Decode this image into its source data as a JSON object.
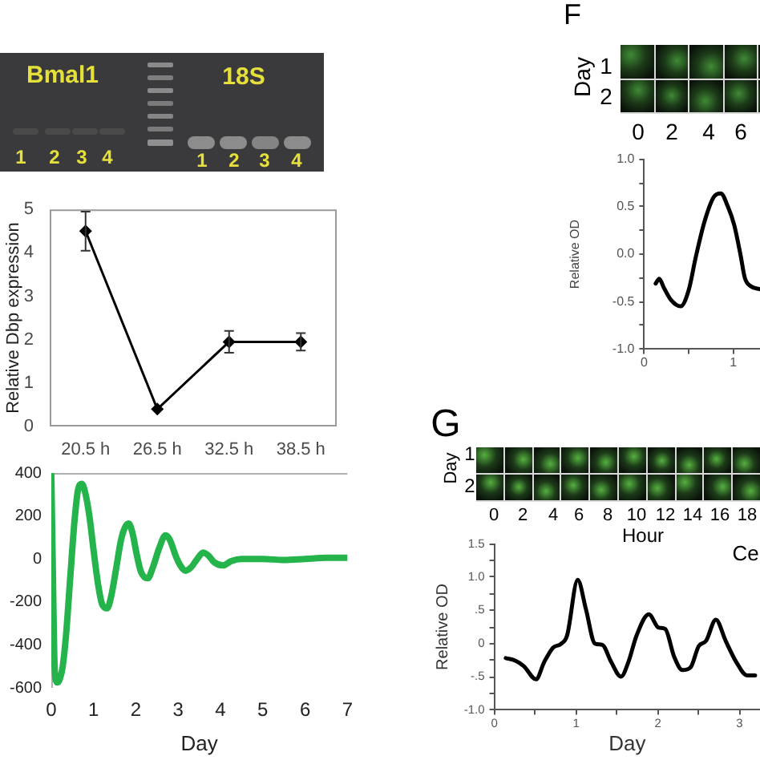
{
  "chart_data": [
    {
      "type": "line",
      "categories": [
        "20.5 h",
        "26.5 h",
        "32.5 h",
        "38.5 h"
      ],
      "values": [
        4.5,
        0.4,
        1.95,
        1.95
      ],
      "errors": [
        0.45,
        null,
        0.25,
        0.2
      ],
      "color": "#000000",
      "marker": "diamond",
      "ylabel": "Relative Dbp expression",
      "ylim": [
        0,
        5
      ],
      "yticks": [
        0,
        1,
        2,
        3,
        4,
        5
      ],
      "annotations": [
        "Bmal1",
        "18S",
        "1",
        "2",
        "3",
        "4",
        "1",
        "2",
        "3",
        "4"
      ]
    },
    {
      "type": "line",
      "x": [
        0,
        0.04,
        0.07,
        0.1,
        0.15,
        0.2,
        0.27,
        0.35,
        0.45,
        0.55,
        0.63,
        0.72,
        0.8,
        0.9,
        1.0,
        1.1,
        1.2,
        1.32,
        1.42,
        1.52,
        1.65,
        1.75,
        1.83,
        1.92,
        2.02,
        2.12,
        2.28,
        2.4,
        2.55,
        2.7,
        2.8,
        2.95,
        3.05,
        3.17,
        3.3,
        3.45,
        3.59,
        3.72,
        3.85,
        4.06,
        4.25,
        4.5,
        5,
        5.5,
        6,
        6.5,
        7
      ],
      "values": [
        390,
        -100,
        -450,
        -560,
        -575,
        -560,
        -500,
        -350,
        -80,
        180,
        320,
        350,
        310,
        200,
        40,
        -110,
        -210,
        -230,
        -170,
        -60,
        90,
        150,
        165,
        120,
        20,
        -60,
        -90,
        -40,
        50,
        110,
        90,
        10,
        -30,
        -55,
        -40,
        0,
        30,
        15,
        -15,
        -30,
        -10,
        0,
        0,
        -5,
        0,
        5,
        5
      ],
      "color": "#25b34b",
      "marker": "none",
      "xlabel": "Day",
      "xlim": [
        0,
        7
      ],
      "xticks": [
        0,
        1,
        2,
        3,
        4,
        5,
        6,
        7
      ],
      "ylim": [
        -600,
        400
      ],
      "yticks": [
        -600,
        -400,
        -200,
        0,
        200,
        400
      ]
    },
    {
      "type": "line",
      "title": "F",
      "annotations": [
        "Day",
        "1",
        "2",
        "0",
        "2",
        "4",
        "6"
      ],
      "x": [
        0.13,
        0.17,
        0.22,
        0.3,
        0.41,
        0.5,
        0.58,
        0.68,
        0.78,
        0.86,
        0.94,
        1.01,
        1.08,
        1.13,
        1.2,
        1.3
      ],
      "values": [
        -0.31,
        -0.26,
        -0.35,
        -0.48,
        -0.55,
        -0.38,
        -0.03,
        0.35,
        0.6,
        0.64,
        0.5,
        0.31,
        0.0,
        -0.25,
        -0.34,
        -0.37
      ],
      "color": "#000000",
      "marker": "none",
      "ylabel": "Relative OD",
      "xlim": [
        0,
        1.3
      ],
      "xticks": [
        0,
        {
          "value": 0.5,
          "label": null
        },
        1
      ],
      "ylim": [
        -1,
        1
      ],
      "yticks": [
        {
          "value": -1,
          "label": "-1.0"
        },
        {
          "value": -0.75,
          "label": null
        },
        {
          "value": -0.5,
          "label": "-0.5"
        },
        {
          "value": -0.25,
          "label": null
        },
        {
          "value": 0,
          "label": "0.0"
        },
        {
          "value": 0.25,
          "label": null
        },
        {
          "value": 0.5,
          "label": "0.5"
        },
        {
          "value": 0.75,
          "label": null
        },
        {
          "value": 1,
          "label": "1.0"
        }
      ]
    },
    {
      "type": "line",
      "title": "G",
      "annotations": [
        "Day",
        "1",
        "2",
        "0",
        "2",
        "4",
        "6",
        "8",
        "10",
        "12",
        "14",
        "16",
        "18",
        "Hour",
        "Ce"
      ],
      "x": [
        0.14,
        0.26,
        0.36,
        0.51,
        0.61,
        0.72,
        0.81,
        0.89,
        1.02,
        1.12,
        1.23,
        1.32,
        1.43,
        1.55,
        1.64,
        1.74,
        1.89,
        2.01,
        2.09,
        2.2,
        2.3,
        2.4,
        2.5,
        2.59,
        2.71,
        2.83,
        2.96,
        3.09,
        3.19
      ],
      "values": [
        -0.22,
        -0.26,
        -0.34,
        -0.54,
        -0.28,
        -0.06,
        -0.01,
        0.12,
        0.96,
        0.52,
        0.0,
        -0.02,
        -0.28,
        -0.5,
        -0.28,
        0.12,
        0.44,
        0.24,
        0.22,
        -0.2,
        -0.4,
        -0.36,
        -0.04,
        0.04,
        0.36,
        0.04,
        -0.28,
        -0.48,
        -0.48
      ],
      "color": "#000000",
      "marker": "none",
      "ylabel": "Relative OD",
      "xlabel": "Day",
      "xlim": [
        0,
        3.25
      ],
      "xticks": [
        0,
        {
          "value": 0.5,
          "label": null
        },
        1,
        {
          "value": 1.5,
          "label": null
        },
        2,
        {
          "value": 2.5,
          "label": null
        },
        3
      ],
      "ylim": [
        -1,
        1.5
      ],
      "yticks": [
        {
          "value": -1,
          "label": "-1.0"
        },
        {
          "value": -0.75,
          "label": null
        },
        {
          "value": -0.5,
          "label": "-.5"
        },
        {
          "value": -0.25,
          "label": null
        },
        0,
        {
          "value": 0.25,
          "label": null
        },
        {
          "value": 0.5,
          "label": ".5"
        },
        {
          "value": 0.75,
          "label": null
        },
        {
          "value": 1,
          "label": "1.0"
        },
        {
          "value": 1.25,
          "label": null
        },
        {
          "value": 1.5,
          "label": "1.5"
        }
      ]
    }
  ]
}
